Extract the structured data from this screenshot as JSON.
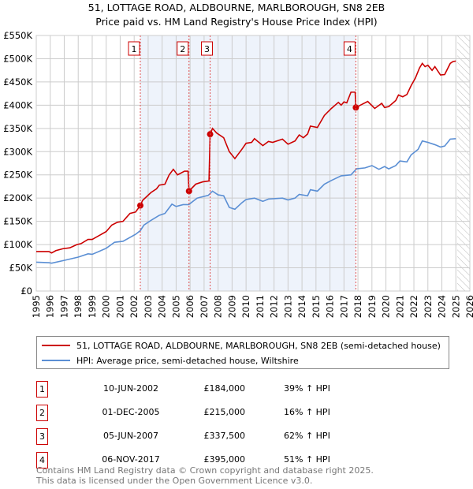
{
  "header": {
    "title": "51, LOTTAGE ROAD, ALDBOURNE, MARLBOROUGH, SN8 2EB",
    "subtitle": "Price paid vs. HM Land Registry's House Price Index (HPI)"
  },
  "colors": {
    "property": "#cc0000",
    "hpi": "#5b8fd4",
    "shade": "#eef3fb"
  },
  "chart_data": {
    "type": "line",
    "title": "51, LOTTAGE ROAD, ALDBOURNE, MARLBOROUGH, SN8 2EB — Price paid vs. HM Land Registry's House Price Index (HPI)",
    "xlim": [
      1995,
      2026
    ],
    "ylim": [
      0,
      550000
    ],
    "x_ticks": [
      "1995",
      "1996",
      "1997",
      "1998",
      "1999",
      "2000",
      "2001",
      "2002",
      "2003",
      "2004",
      "2005",
      "2006",
      "2007",
      "2008",
      "2009",
      "2010",
      "2011",
      "2012",
      "2013",
      "2014",
      "2015",
      "2016",
      "2017",
      "2018",
      "2019",
      "2020",
      "2021",
      "2022",
      "2023",
      "2024",
      "2025",
      "2026"
    ],
    "y_ticks": [
      {
        "v": 0,
        "label": "£0"
      },
      {
        "v": 50000,
        "label": "£50K"
      },
      {
        "v": 100000,
        "label": "£100K"
      },
      {
        "v": 150000,
        "label": "£150K"
      },
      {
        "v": 200000,
        "label": "£200K"
      },
      {
        "v": 250000,
        "label": "£250K"
      },
      {
        "v": 300000,
        "label": "£300K"
      },
      {
        "v": 350000,
        "label": "£350K"
      },
      {
        "v": 400000,
        "label": "£400K"
      },
      {
        "v": 450000,
        "label": "£450K"
      },
      {
        "v": 500000,
        "label": "£500K"
      },
      {
        "v": 550000,
        "label": "£550K"
      }
    ],
    "grid": true,
    "shaded_range": [
      2002.44,
      2017.85
    ],
    "forecast_hatch_from": 2025.1,
    "series": [
      {
        "name": "51, LOTTAGE ROAD, ALDBOURNE, MARLBOROUGH, SN8 2EB (semi-detached house)",
        "color": "#cc0000",
        "points": [
          [
            1995.0,
            85
          ],
          [
            1995.9,
            85
          ],
          [
            1996.1,
            82
          ],
          [
            1996.4,
            87
          ],
          [
            1996.9,
            91
          ],
          [
            1997.4,
            93
          ],
          [
            1997.9,
            100
          ],
          [
            1998.2,
            102
          ],
          [
            1998.7,
            111
          ],
          [
            1999.0,
            111
          ],
          [
            2000.0,
            128
          ],
          [
            2000.4,
            142
          ],
          [
            2000.8,
            148
          ],
          [
            2001.2,
            150
          ],
          [
            2001.7,
            167
          ],
          [
            2002.1,
            170
          ],
          [
            2002.44,
            184
          ],
          [
            2002.6,
            195
          ],
          [
            2003.2,
            212
          ],
          [
            2003.6,
            220
          ],
          [
            2003.8,
            228
          ],
          [
            2004.2,
            230
          ],
          [
            2004.5,
            250
          ],
          [
            2004.8,
            262
          ],
          [
            2005.1,
            250
          ],
          [
            2005.6,
            258
          ],
          [
            2005.85,
            258
          ],
          [
            2005.92,
            215
          ],
          [
            2006.4,
            230
          ],
          [
            2006.9,
            235
          ],
          [
            2007.35,
            237
          ],
          [
            2007.43,
            337.5
          ],
          [
            2007.6,
            350
          ],
          [
            2007.9,
            340
          ],
          [
            2008.4,
            330
          ],
          [
            2008.8,
            300
          ],
          [
            2009.2,
            285
          ],
          [
            2009.7,
            305
          ],
          [
            2010.0,
            318
          ],
          [
            2010.4,
            320
          ],
          [
            2010.6,
            328
          ],
          [
            2011.2,
            313
          ],
          [
            2011.6,
            322
          ],
          [
            2011.9,
            320
          ],
          [
            2012.6,
            327
          ],
          [
            2013.0,
            316
          ],
          [
            2013.5,
            323
          ],
          [
            2013.8,
            336
          ],
          [
            2014.1,
            330
          ],
          [
            2014.4,
            338
          ],
          [
            2014.6,
            355
          ],
          [
            2015.1,
            352
          ],
          [
            2015.6,
            378
          ],
          [
            2016.1,
            393
          ],
          [
            2016.6,
            406
          ],
          [
            2016.8,
            400
          ],
          [
            2017.0,
            407
          ],
          [
            2017.2,
            405
          ],
          [
            2017.5,
            428
          ],
          [
            2017.8,
            428
          ],
          [
            2017.85,
            395
          ],
          [
            2018.3,
            402
          ],
          [
            2018.7,
            408
          ],
          [
            2019.2,
            393
          ],
          [
            2019.7,
            404
          ],
          [
            2019.9,
            395
          ],
          [
            2020.2,
            397
          ],
          [
            2020.7,
            410
          ],
          [
            2020.9,
            422
          ],
          [
            2021.2,
            418
          ],
          [
            2021.5,
            423
          ],
          [
            2021.8,
            442
          ],
          [
            2022.1,
            458
          ],
          [
            2022.4,
            480
          ],
          [
            2022.6,
            490
          ],
          [
            2022.8,
            483
          ],
          [
            2023.0,
            486
          ],
          [
            2023.3,
            475
          ],
          [
            2023.5,
            483
          ],
          [
            2023.9,
            465
          ],
          [
            2024.2,
            466
          ],
          [
            2024.6,
            490
          ],
          [
            2024.8,
            494
          ],
          [
            2025.0,
            495
          ]
        ]
      },
      {
        "name": "HPI: Average price, semi-detached house, Wiltshire",
        "color": "#5b8fd4",
        "points": [
          [
            1995.0,
            62
          ],
          [
            1995.9,
            61
          ],
          [
            1996.1,
            60
          ],
          [
            1997.0,
            66
          ],
          [
            1998.0,
            73
          ],
          [
            1998.7,
            80
          ],
          [
            1999.0,
            79
          ],
          [
            2000.0,
            92
          ],
          [
            2000.6,
            105
          ],
          [
            2001.2,
            107
          ],
          [
            2002.1,
            122
          ],
          [
            2002.44,
            130
          ],
          [
            2002.7,
            142
          ],
          [
            2003.2,
            152
          ],
          [
            2003.8,
            163
          ],
          [
            2004.2,
            167
          ],
          [
            2004.7,
            187
          ],
          [
            2005.0,
            182
          ],
          [
            2005.5,
            186
          ],
          [
            2005.9,
            186
          ],
          [
            2006.5,
            200
          ],
          [
            2007.3,
            206
          ],
          [
            2007.6,
            215
          ],
          [
            2008.0,
            207
          ],
          [
            2008.4,
            205
          ],
          [
            2008.8,
            180
          ],
          [
            2009.2,
            176
          ],
          [
            2009.7,
            190
          ],
          [
            2010.0,
            197
          ],
          [
            2010.6,
            200
          ],
          [
            2011.2,
            193
          ],
          [
            2011.6,
            198
          ],
          [
            2012.6,
            200
          ],
          [
            2013.0,
            196
          ],
          [
            2013.5,
            200
          ],
          [
            2013.8,
            208
          ],
          [
            2014.4,
            205
          ],
          [
            2014.6,
            218
          ],
          [
            2015.1,
            215
          ],
          [
            2015.6,
            230
          ],
          [
            2016.1,
            238
          ],
          [
            2016.8,
            248
          ],
          [
            2017.5,
            250
          ],
          [
            2017.9,
            263
          ],
          [
            2018.5,
            265
          ],
          [
            2019.0,
            270
          ],
          [
            2019.5,
            262
          ],
          [
            2019.9,
            268
          ],
          [
            2020.2,
            263
          ],
          [
            2020.7,
            270
          ],
          [
            2021.0,
            280
          ],
          [
            2021.5,
            278
          ],
          [
            2021.8,
            293
          ],
          [
            2022.3,
            305
          ],
          [
            2022.6,
            323
          ],
          [
            2023.0,
            320
          ],
          [
            2023.5,
            315
          ],
          [
            2023.9,
            310
          ],
          [
            2024.2,
            312
          ],
          [
            2024.6,
            327
          ],
          [
            2025.0,
            328
          ]
        ]
      }
    ],
    "sales": [
      {
        "label": "1",
        "x": 2002.44,
        "y": 184
      },
      {
        "label": "2",
        "x": 2005.92,
        "y": 215
      },
      {
        "label": "3",
        "x": 2007.43,
        "y": 337.5
      },
      {
        "label": "4",
        "x": 2017.85,
        "y": 395
      }
    ],
    "y_units": "thousand GBP"
  },
  "legend": {
    "property": "51, LOTTAGE ROAD, ALDBOURNE, MARLBOROUGH, SN8 2EB (semi-detached house)",
    "hpi": "HPI: Average price, semi-detached house, Wiltshire"
  },
  "transactions": [
    {
      "num": "1",
      "date": "10-JUN-2002",
      "price": "£184,000",
      "pct": "39% ↑ HPI"
    },
    {
      "num": "2",
      "date": "01-DEC-2005",
      "price": "£215,000",
      "pct": "16% ↑ HPI"
    },
    {
      "num": "3",
      "date": "05-JUN-2007",
      "price": "£337,500",
      "pct": "62% ↑ HPI"
    },
    {
      "num": "4",
      "date": "06-NOV-2017",
      "price": "£395,000",
      "pct": "51% ↑ HPI"
    }
  ],
  "footer": {
    "line1": "Contains HM Land Registry data © Crown copyright and database right 2025.",
    "line2": "This data is licensed under the Open Government Licence v3.0."
  }
}
